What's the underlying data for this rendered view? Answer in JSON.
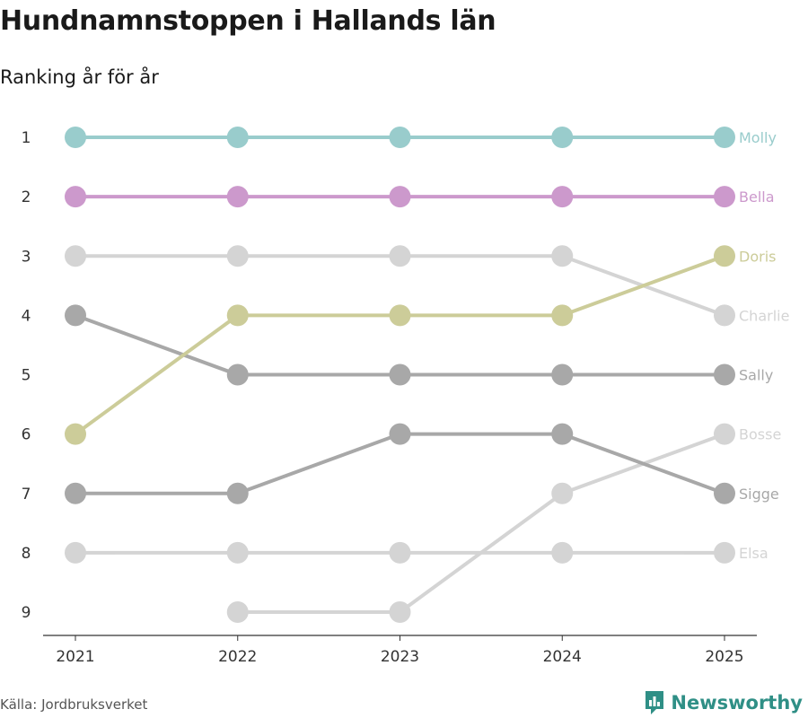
{
  "title": "Hundnamnstoppen i Hallands län",
  "subtitle": "Ranking år för år",
  "source": "Källa: Jordbruksverket",
  "brand": {
    "name": "Newsworthy",
    "icon": "bar-chart-icon",
    "color": "#2f8f86"
  },
  "chart_data": {
    "type": "line",
    "title": "Hundnamnstoppen i Hallands län",
    "subtitle": "Ranking år för år",
    "x": [
      2021,
      2022,
      2023,
      2024,
      2025
    ],
    "ylim": [
      1,
      9
    ],
    "y_inverted": true,
    "y_ticks": [
      1,
      2,
      3,
      4,
      5,
      6,
      7,
      8,
      9
    ],
    "grid": false,
    "series": [
      {
        "name": "Molly",
        "color": "#99cccc",
        "values": [
          1,
          1,
          1,
          1,
          1
        ]
      },
      {
        "name": "Bella",
        "color": "#cc99cc",
        "values": [
          2,
          2,
          2,
          2,
          2
        ]
      },
      {
        "name": "Doris",
        "color": "#cccc99",
        "values": [
          6,
          4,
          4,
          4,
          3
        ]
      },
      {
        "name": "Charlie",
        "color": "#d4d4d4",
        "values": [
          3,
          3,
          3,
          3,
          4
        ]
      },
      {
        "name": "Sally",
        "color": "#a8a8a8",
        "values": [
          4,
          5,
          5,
          5,
          5
        ]
      },
      {
        "name": "Bosse",
        "color": "#d4d4d4",
        "values": [
          null,
          9,
          9,
          7,
          6
        ]
      },
      {
        "name": "Sigge",
        "color": "#a8a8a8",
        "values": [
          7,
          7,
          6,
          6,
          7
        ]
      },
      {
        "name": "Elsa",
        "color": "#d4d4d4",
        "values": [
          8,
          8,
          8,
          8,
          8
        ]
      }
    ]
  }
}
